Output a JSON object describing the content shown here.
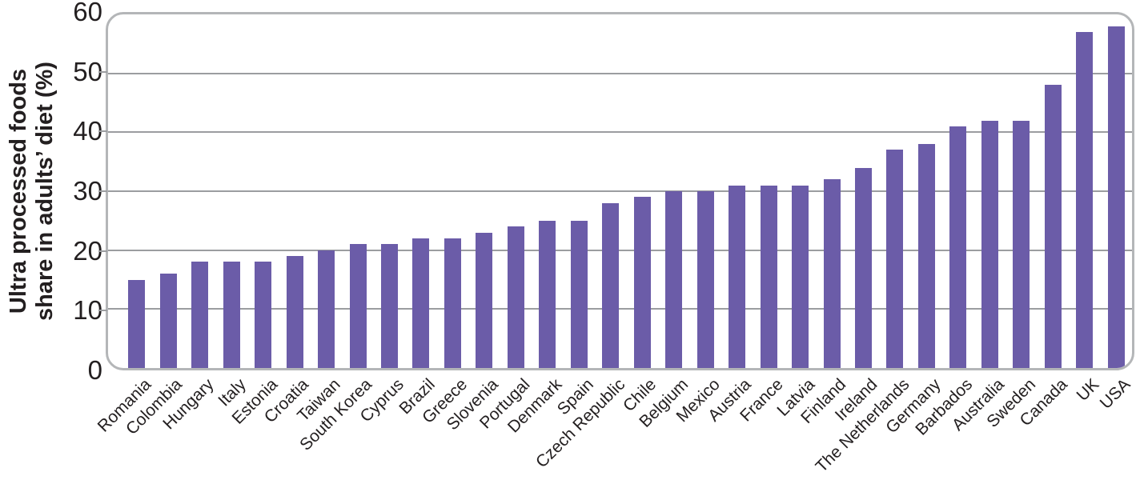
{
  "chart_data": {
    "type": "bar",
    "title": "",
    "ylabel_line1": "Ultra processed foods",
    "ylabel_line2": "share in adults’ diet (%)",
    "xlabel": "",
    "categories": [
      "Romania",
      "Colombia",
      "Hungary",
      "Italy",
      "Estonia",
      "Croatia",
      "Taiwan",
      "South Korea",
      "Cyprus",
      "Brazil",
      "Greece",
      "Slovenia",
      "Portugal",
      "Denmark",
      "Spain",
      "Czech Republic",
      "Chile",
      "Belgium",
      "Mexico",
      "Austria",
      "France",
      "Latvia",
      "Finland",
      "Ireland",
      "The Netherlands",
      "Germany",
      "Barbados",
      "Australia",
      "Sweden",
      "Canada",
      "UK",
      "USA"
    ],
    "values": [
      15,
      16,
      18,
      18,
      18,
      19,
      20,
      21,
      21,
      22,
      22,
      23,
      24,
      25,
      25,
      28,
      29,
      30,
      30,
      31,
      31,
      31,
      32,
      34,
      37,
      38,
      41,
      42,
      42,
      48,
      57,
      58
    ],
    "ylim": [
      0,
      60
    ],
    "yticks": [
      0,
      10,
      20,
      30,
      40,
      50,
      60
    ],
    "grid": true,
    "legend": "none",
    "bar_color": "#6b5ca8",
    "grid_color": "#9b9da0",
    "frame_color": "#b4b6b8",
    "text_color": "#231f20"
  }
}
